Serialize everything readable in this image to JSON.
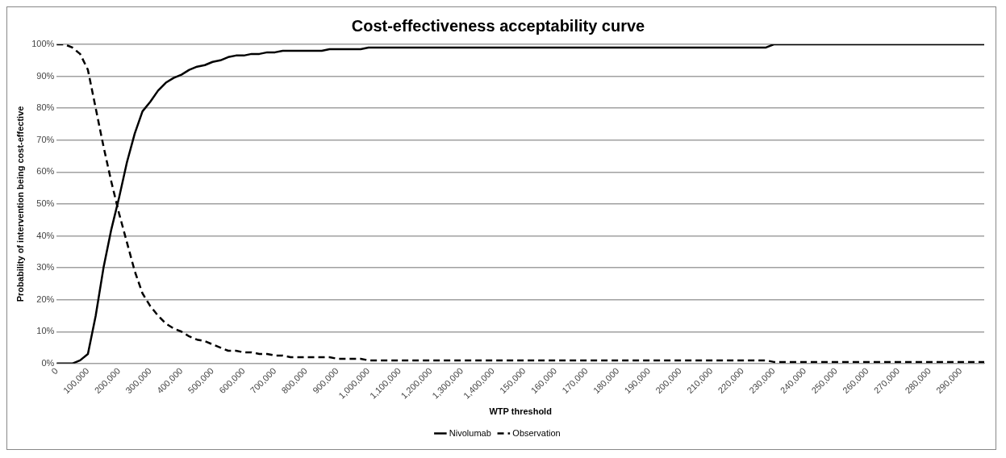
{
  "chart_data": {
    "type": "line",
    "title": "Cost-effectiveness acceptability curve",
    "xlabel": "WTP threshold",
    "ylabel": "Probability of intervention being cost-effective",
    "categories": [
      "0",
      null,
      null,
      null,
      "100,000",
      null,
      null,
      null,
      "200,000",
      null,
      null,
      null,
      "300,000",
      null,
      null,
      null,
      "400,000",
      null,
      null,
      null,
      "500,000",
      null,
      null,
      null,
      "600,000",
      null,
      null,
      null,
      "700,000",
      null,
      null,
      null,
      "800,000",
      null,
      null,
      null,
      "900,000",
      null,
      null,
      null,
      "1,000,000",
      null,
      null,
      null,
      "1,100,000",
      null,
      null,
      null,
      "1,200,000",
      null,
      null,
      null,
      "1,300,000",
      null,
      null,
      null,
      "1,400,000",
      null,
      null,
      null,
      "150,000",
      null,
      null,
      null,
      "160,000",
      null,
      null,
      null,
      "170,000",
      null,
      null,
      null,
      "180,000",
      null,
      null,
      null,
      "190,000",
      null,
      null,
      null,
      "200,000",
      null,
      null,
      null,
      "210,000",
      null,
      null,
      null,
      "220,000",
      null,
      null,
      null,
      "230,000",
      null,
      null,
      null,
      "240,000",
      null,
      null,
      null,
      "250,000",
      null,
      null,
      null,
      "260,000",
      null,
      null,
      null,
      "270,000",
      null,
      null,
      null,
      "280,000",
      null,
      null,
      null,
      "290,000",
      null,
      null,
      null
    ],
    "ylim": [
      0,
      100
    ],
    "yticks": [
      {
        "value": 0,
        "label": "0%"
      },
      {
        "value": 10,
        "label": "10%"
      },
      {
        "value": 20,
        "label": "20%"
      },
      {
        "value": 30,
        "label": "30%"
      },
      {
        "value": 40,
        "label": "40%"
      },
      {
        "value": 50,
        "label": "50%"
      },
      {
        "value": 60,
        "label": "60%"
      },
      {
        "value": 70,
        "label": "70%"
      },
      {
        "value": 80,
        "label": "80%"
      },
      {
        "value": 90,
        "label": "90%"
      },
      {
        "value": 100,
        "label": "100%"
      }
    ],
    "grid": "y",
    "legend": "bottom",
    "marker": "none",
    "series": [
      {
        "name": "Nivolumab",
        "color": "#000000",
        "line_style": "solid",
        "values": [
          0,
          0,
          0,
          1,
          3,
          15,
          30,
          42,
          52,
          63,
          72,
          79,
          82,
          85.5,
          88,
          89.5,
          90.5,
          92,
          93,
          93.5,
          94.5,
          95,
          96,
          96.5,
          96.5,
          97,
          97,
          97.5,
          97.5,
          98,
          98,
          98,
          98,
          98,
          98,
          98.5,
          98.5,
          98.5,
          98.5,
          98.5,
          99,
          99,
          99,
          99,
          99,
          99,
          99,
          99,
          99,
          99,
          99,
          99,
          99,
          99,
          99,
          99,
          99,
          99,
          99,
          99,
          99,
          99,
          99,
          99,
          99,
          99,
          99,
          99,
          99,
          99,
          99,
          99,
          99,
          99,
          99,
          99,
          99,
          99,
          99,
          99,
          99,
          99,
          99,
          99,
          99,
          99,
          99,
          99,
          99,
          99,
          99,
          99,
          100,
          100,
          100,
          100,
          100,
          100,
          100,
          100,
          100,
          100,
          100,
          100,
          100,
          100,
          100,
          100,
          100,
          100,
          100,
          100,
          100,
          100,
          100,
          100,
          100,
          100,
          100,
          100
        ]
      },
      {
        "name": "Observation",
        "color": "#000000",
        "line_style": "dashed",
        "values": [
          100,
          100,
          99,
          97,
          92,
          80,
          68,
          57,
          47,
          38,
          29,
          22,
          18,
          15,
          12.5,
          11,
          10,
          8.5,
          7.5,
          7,
          6,
          5,
          4,
          4,
          3.5,
          3.5,
          3,
          3,
          2.5,
          2.5,
          2,
          2,
          2,
          2,
          2,
          2,
          1.5,
          1.5,
          1.5,
          1.5,
          1,
          1,
          1,
          1,
          1,
          1,
          1,
          1,
          1,
          1,
          1,
          1,
          1,
          1,
          1,
          1,
          1,
          1,
          1,
          1,
          1,
          1,
          1,
          1,
          1,
          1,
          1,
          1,
          1,
          1,
          1,
          1,
          1,
          1,
          1,
          1,
          1,
          1,
          1,
          1,
          1,
          1,
          1,
          1,
          1,
          1,
          1,
          1,
          1,
          1,
          1,
          1,
          0.5,
          0.5,
          0.5,
          0.5,
          0.5,
          0.5,
          0.5,
          0.5,
          0.5,
          0.5,
          0.5,
          0.5,
          0.5,
          0.5,
          0.5,
          0.5,
          0.5,
          0.5,
          0.5,
          0.5,
          0.5,
          0.5,
          0.5,
          0.5,
          0.5,
          0.5,
          0.5,
          0.5
        ]
      }
    ]
  }
}
